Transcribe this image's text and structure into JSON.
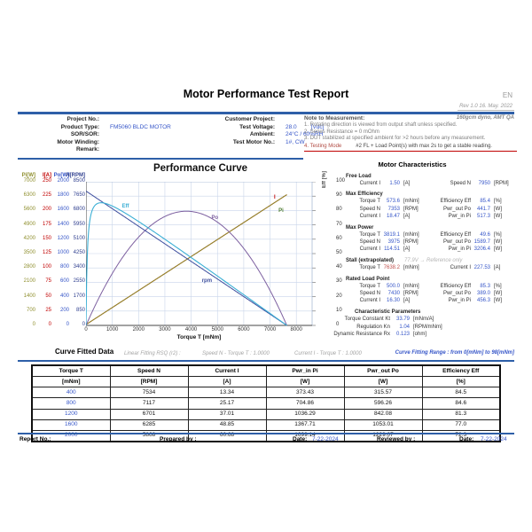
{
  "page": {
    "title": "Motor Performance Test Report",
    "lang_tag": "EN",
    "rev": "Rev 1.0  16. May. 2022",
    "dyno": "160gcm dyno, AMT QA"
  },
  "header": {
    "left_fields": [
      {
        "label": "Project No.:",
        "value": "",
        "unit": ""
      },
      {
        "label": "Product Type:",
        "value": "FM5060 BLDC MOTOR",
        "unit": ""
      },
      {
        "label": "SOR/SOR:",
        "value": "",
        "unit": ""
      },
      {
        "label": "Motor Winding:",
        "value": "",
        "unit": ""
      },
      {
        "label": "Remark:",
        "value": "",
        "unit": ""
      }
    ],
    "mid_fields": [
      {
        "label": "Customer Project:",
        "value": "",
        "unit": ""
      },
      {
        "label": "Test Voltage:",
        "value": "28.0",
        "unit": "[Vdc]"
      },
      {
        "label": "Ambient:",
        "value": "24°C / 60%RH",
        "unit": ""
      },
      {
        "label": "Test Motor No.:",
        "value": "1#, CW",
        "unit": ""
      }
    ],
    "notes": {
      "title": "Note to Measurement:",
      "items": [
        "1. Rotating direction is viewed from output shaft unless specified.",
        "2. Series Resistance = 0 mOhm",
        "3. DUT stabilized at specified ambient for >2 hours before any measurement."
      ],
      "testing_mode_label": "4. Testing Mode",
      "testing_mode_value": "#2 FL + Load Point(s) with max 2s to get a stable reading."
    }
  },
  "chart_data": {
    "type": "line",
    "title": "Performance Curve",
    "xlabel": "Torque T [mNm]",
    "x_max": 8600,
    "x_ticks": [
      0,
      1000,
      2000,
      3000,
      4000,
      5000,
      6000,
      7000,
      8000
    ],
    "model": {
      "voltage_Vdc": 28.0,
      "no_load_speed_rpm": 7950,
      "no_load_current_A": 1.5,
      "stall_torque_mNm": 7638.2,
      "stall_current_A": 227.53,
      "max_power_W": 1589.7,
      "max_efficiency_pct": 85.4
    },
    "axes": [
      {
        "id": "Pi",
        "label": "Pi[W]",
        "color": "#8F8F2E",
        "max": 7000,
        "ticks": [
          7000,
          6300,
          5600,
          4900,
          4200,
          3500,
          2800,
          2100,
          1400,
          700,
          0
        ]
      },
      {
        "id": "I",
        "label": "I[A]",
        "color": "#C00000",
        "max": 250,
        "ticks": [
          250,
          225,
          200,
          175,
          150,
          125,
          100,
          75,
          50,
          25,
          0
        ]
      },
      {
        "id": "Po",
        "label": "Po[W]",
        "color": "#3555C8",
        "max": 2000,
        "ticks": [
          2000,
          1800,
          1600,
          1400,
          1200,
          1000,
          800,
          600,
          400,
          200,
          0
        ]
      },
      {
        "id": "N",
        "label": "N[RPM]",
        "color": "#2F3F8F",
        "max": 8500,
        "ticks": [
          8500,
          7650,
          6800,
          5950,
          5100,
          4250,
          3400,
          2550,
          1700,
          850,
          0
        ]
      }
    ],
    "right_axis": {
      "label": "Eff [%]",
      "max": 100,
      "ticks": [
        100,
        90,
        80,
        70,
        60,
        50,
        40,
        30,
        20,
        10,
        0
      ]
    },
    "series": [
      {
        "id": "I",
        "name": "Current I",
        "color": "#C00000",
        "axis_max": 250
      },
      {
        "id": "Pi",
        "name": "Pwr_in Pi",
        "color": "#8F8F2E",
        "axis_max": 7000
      },
      {
        "id": "Po",
        "name": "Pwr_out Po",
        "color": "#7D60A0",
        "axis_max": 2000
      },
      {
        "id": "N",
        "name": "Speed N",
        "color": "#3E4E9E",
        "axis_max": 8500
      },
      {
        "id": "Eff",
        "name": "Efficiency Eff",
        "color": "#3BAFD5",
        "axis_max": 100
      }
    ],
    "labels": [
      {
        "text": "Eff",
        "x": 1500,
        "y": 82,
        "color": "#3BAFD5"
      },
      {
        "text": "Po",
        "x": 4900,
        "y": 74,
        "color": "#7D60A0"
      },
      {
        "text": "rpm",
        "x": 4600,
        "y": 30,
        "color": "#3E4E9E"
      },
      {
        "text": "I",
        "x": 7180,
        "y": 88,
        "color": "#C00000"
      },
      {
        "text": "Pi",
        "x": 7420,
        "y": 79,
        "color": "#4E7C31"
      }
    ]
  },
  "characteristics": {
    "title": "Motor Characteristics",
    "sections": [
      {
        "name": "Free Load",
        "note": "",
        "rows": [
          [
            {
              "l": "Current I",
              "v": "1.50",
              "u": "[A]"
            },
            {
              "l": "Speed N",
              "v": "7950",
              "u": "[RPM]"
            }
          ]
        ]
      },
      {
        "name": "Max Efficiency",
        "note": "",
        "rows": [
          [
            {
              "l": "Torque T",
              "v": "573.6",
              "u": "[mNm]"
            },
            {
              "l": "Efficiency Eff",
              "v": "85.4",
              "u": "[%]"
            }
          ],
          [
            {
              "l": "Speed N",
              "v": "7353",
              "u": "[RPM]"
            },
            {
              "l": "Pwr_out Po",
              "v": "441.7",
              "u": "[W]"
            }
          ],
          [
            {
              "l": "Current I",
              "v": "18.47",
              "u": "[A]"
            },
            {
              "l": "Pwr_in Pi",
              "v": "517.3",
              "u": "[W]"
            }
          ]
        ]
      },
      {
        "name": "Max Power",
        "note": "",
        "rows": [
          [
            {
              "l": "Torque T",
              "v": "3819.1",
              "u": "[mNm]"
            },
            {
              "l": "Efficiency Eff",
              "v": "49.6",
              "u": "[%]"
            }
          ],
          [
            {
              "l": "Speed N",
              "v": "3975",
              "u": "[RPM]"
            },
            {
              "l": "Pwr_out Po",
              "v": "1589.7",
              "u": "[W]"
            }
          ],
          [
            {
              "l": "Current I",
              "v": "114.51",
              "u": "[A]"
            },
            {
              "l": "Pwr_in Pi",
              "v": "3206.4",
              "u": "[W]"
            }
          ]
        ]
      },
      {
        "name": "Stall (extrapolated)",
        "note": "77.9V → Reference only",
        "rows": [
          [
            {
              "l": "Torque T",
              "v": "7638.2",
              "u": "[mNm]",
              "red": true
            },
            {
              "l": "Current I",
              "v": "227.53",
              "u": "[A]"
            }
          ]
        ]
      },
      {
        "name": "Rated Load Point",
        "note": "",
        "rows": [
          [
            {
              "l": "Torque T",
              "v": "500.0",
              "u": "[mNm]"
            },
            {
              "l": "Efficiency Eff",
              "v": "85.3",
              "u": "[%]"
            }
          ],
          [
            {
              "l": "Speed N",
              "v": "7430",
              "u": "[RPM]"
            },
            {
              "l": "Pwr_out Po",
              "v": "389.0",
              "u": "[W]"
            }
          ],
          [
            {
              "l": "Current I",
              "v": "16.30",
              "u": "[A]"
            },
            {
              "l": "Pwr_in Pi",
              "v": "456.3",
              "u": "[W]"
            }
          ]
        ]
      }
    ],
    "parameters": {
      "title": "Characteristic Parameters",
      "rows": [
        {
          "l": "Torque Constant Kt",
          "v": "33.79",
          "u": "[mNm/A]"
        },
        {
          "l": "Regulation Kn",
          "v": "1.04",
          "u": "[RPM/mNm]"
        },
        {
          "l": "Dynamic Resistance Rx",
          "v": "0.123",
          "u": "[ohm]"
        }
      ]
    }
  },
  "fitted": {
    "title": "Curve Fitted Data",
    "rsq_label": "Linear Fitting RSQ (r2) :",
    "rsq_items": [
      "Speed N - Torque T :  1.0000",
      "Current I - Torque T :  1.0000"
    ],
    "range": "Curve Fitting Range :  from 0[mNm] to 98[mNm]",
    "table": {
      "headers": [
        "Torque T",
        "Speed N",
        "Current I",
        "Pwr_in Pi",
        "Pwr_out Po",
        "Efficiency  Eff"
      ],
      "units": [
        "[mNm]",
        "[RPM]",
        "[A]",
        "[W]",
        "[W]",
        "[%]"
      ],
      "rows": [
        [
          "400",
          "7534",
          "13.34",
          "373.43",
          "315.57",
          "84.5"
        ],
        [
          "800",
          "7117",
          "25.17",
          "704.86",
          "596.26",
          "84.6"
        ],
        [
          "1200",
          "6701",
          "37.01",
          "1036.29",
          "842.08",
          "81.3"
        ],
        [
          "1600",
          "6285",
          "48.85",
          "1367.71",
          "1053.01",
          "77.0"
        ],
        [
          "2000",
          "5868",
          "60.68",
          "1699.14",
          "1229.07",
          "72.3"
        ]
      ]
    }
  },
  "footer": {
    "report_no_label": "Report No.:",
    "prepared_label": "Prepared by :",
    "date1_label": "Date:",
    "date1": "7-22-2024",
    "reviewed_label": "Reviewed by :",
    "date2_label": "Date:",
    "date2": "7-22-2024"
  }
}
